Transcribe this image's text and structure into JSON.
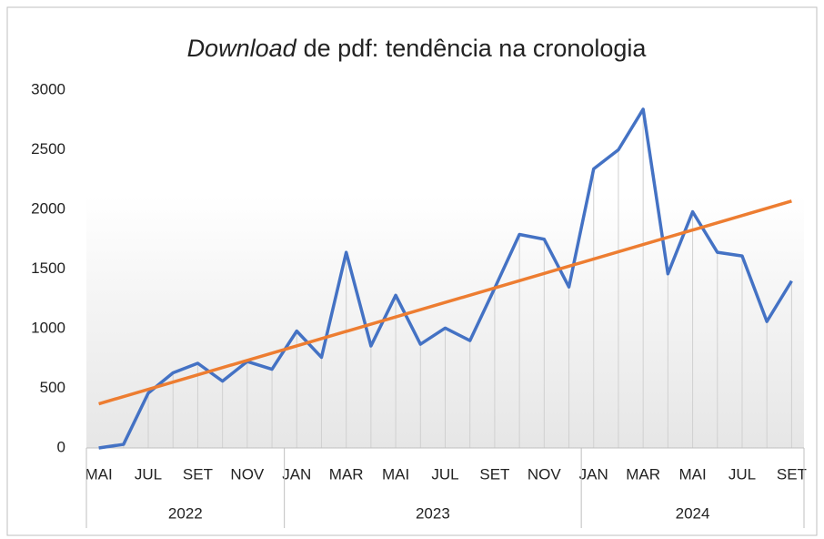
{
  "chart_data": {
    "type": "line",
    "title_emphasis": "Download",
    "title": "de pdf: tendência na cronologia",
    "categories": [
      "MAI",
      null,
      "JUL",
      null,
      "SET",
      null,
      "NOV",
      null,
      "JAN",
      null,
      "MAR",
      null,
      "MAI",
      null,
      "JUL",
      null,
      "SET",
      null,
      "NOV",
      null,
      "JAN",
      null,
      "MAR",
      null,
      "MAI",
      null,
      "JUL",
      null,
      "SET"
    ],
    "groups": [
      {
        "name": "2022",
        "count": 8
      },
      {
        "name": "2023",
        "count": 12
      },
      {
        "name": "2024",
        "count": 9
      }
    ],
    "series": [
      {
        "name": "Download",
        "color": "#4472c4",
        "values": [
          0,
          30,
          460,
          630,
          710,
          560,
          725,
          660,
          980,
          760,
          1640,
          855,
          1280,
          870,
          1005,
          900,
          1340,
          1790,
          1750,
          1350,
          2340,
          2500,
          2840,
          1460,
          1980,
          1640,
          1610,
          1060,
          1400
        ]
      }
    ],
    "trendline": {
      "color": "#ed7d31",
      "start": 370,
      "end": 2070
    },
    "ylim": [
      0,
      3000
    ],
    "yticks": [
      0,
      500,
      1000,
      1500,
      2000,
      2500,
      3000
    ],
    "drop_lines": true
  }
}
